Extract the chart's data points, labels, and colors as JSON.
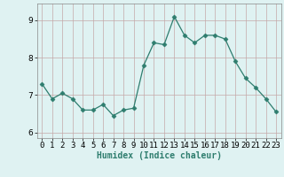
{
  "x": [
    0,
    1,
    2,
    3,
    4,
    5,
    6,
    7,
    8,
    9,
    10,
    11,
    12,
    13,
    14,
    15,
    16,
    17,
    18,
    19,
    20,
    21,
    22,
    23
  ],
  "y": [
    7.3,
    6.9,
    7.05,
    6.9,
    6.6,
    6.6,
    6.75,
    6.45,
    6.6,
    6.65,
    7.8,
    8.4,
    8.35,
    9.1,
    8.6,
    8.4,
    8.6,
    8.6,
    8.5,
    7.9,
    7.45,
    7.2,
    6.9,
    6.55
  ],
  "line_color": "#2e7d6e",
  "marker": "D",
  "marker_size": 2.5,
  "bg_color": "#dff2f2",
  "grid_color": "#c4a8a8",
  "xlabel": "Humidex (Indice chaleur)",
  "ylim": [
    5.85,
    9.45
  ],
  "yticks": [
    6,
    7,
    8,
    9
  ],
  "xtick_labels": [
    "0",
    "1",
    "2",
    "3",
    "4",
    "5",
    "6",
    "7",
    "8",
    "9",
    "10",
    "11",
    "12",
    "13",
    "14",
    "15",
    "16",
    "17",
    "18",
    "19",
    "20",
    "21",
    "22",
    "23"
  ],
  "axis_label_fontsize": 7,
  "tick_fontsize": 6.5
}
